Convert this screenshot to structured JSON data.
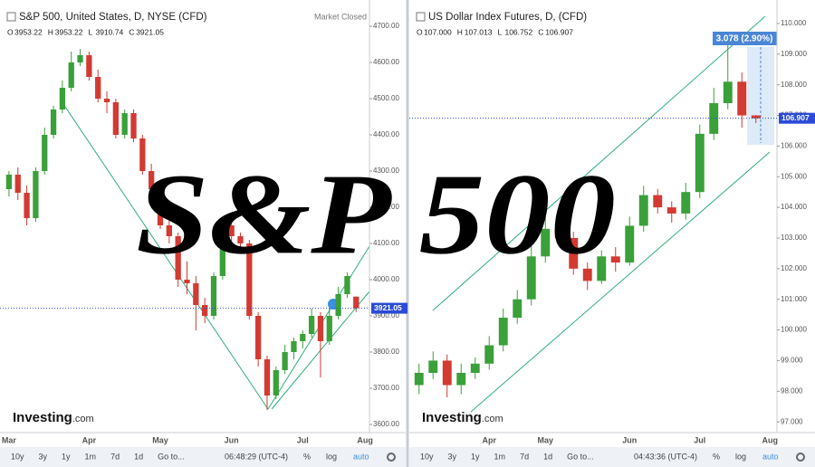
{
  "ui": {
    "overlay_title": "S&P 500"
  },
  "chart_data": [
    {
      "type": "candlestick",
      "title": "S&P 500, United States, D, NYSE (CFD)",
      "status": "Market Closed",
      "ohlc_header": [
        [
          "O",
          "3953.22"
        ],
        [
          "H",
          "3953.22"
        ],
        [
          "L",
          "3910.74"
        ],
        [
          "C",
          "3921.05"
        ]
      ],
      "categories": [
        "Mar",
        null,
        null,
        null,
        null,
        null,
        null,
        null,
        null,
        "Apr",
        null,
        null,
        null,
        null,
        null,
        null,
        null,
        "May",
        null,
        null,
        null,
        null,
        null,
        null,
        null,
        "Jun",
        null,
        null,
        null,
        null,
        null,
        null,
        null,
        "Jul",
        null,
        null,
        null,
        null,
        null,
        null,
        "Aug"
      ],
      "open": [
        4250,
        4290,
        4240,
        4170,
        4300,
        4400,
        4470,
        4530,
        4600,
        4620,
        4560,
        4500,
        4490,
        4400,
        4460,
        4390,
        4300,
        4250,
        4150,
        4120,
        4000,
        3990,
        3930,
        3900,
        4010,
        4150,
        4120,
        4100,
        3900,
        3780,
        3680,
        3750,
        3800,
        3830,
        3850,
        3900,
        3830,
        3900,
        3960,
        3953.22,
        null
      ],
      "high": [
        4300,
        4310,
        4260,
        4310,
        4420,
        4480,
        4550,
        4630,
        4637,
        4630,
        4580,
        4520,
        4500,
        4470,
        4470,
        4400,
        4320,
        4260,
        4170,
        4130,
        4050,
        4010,
        3950,
        4020,
        4170,
        4170,
        4130,
        4110,
        3910,
        3790,
        3760,
        3820,
        3840,
        3860,
        3920,
        3910,
        3920,
        3980,
        4020,
        3953.22,
        null
      ],
      "low": [
        4230,
        4220,
        4150,
        4160,
        4290,
        4390,
        4460,
        4520,
        4590,
        4550,
        4490,
        4460,
        4390,
        4390,
        4380,
        4290,
        4230,
        4140,
        4100,
        3980,
        3960,
        3860,
        3880,
        3890,
        4000,
        4100,
        4080,
        3890,
        3760,
        3640,
        3670,
        3740,
        3780,
        3810,
        3840,
        3730,
        3820,
        3890,
        3950,
        3910.74,
        null
      ],
      "close": [
        4290,
        4240,
        4170,
        4300,
        4400,
        4470,
        4530,
        4600,
        4620,
        4560,
        4500,
        4490,
        4400,
        4460,
        4390,
        4300,
        4250,
        4150,
        4120,
        4000,
        3990,
        3930,
        3900,
        4010,
        4150,
        4120,
        4100,
        3900,
        3780,
        3680,
        3750,
        3800,
        3830,
        3850,
        3900,
        3830,
        3900,
        3960,
        4010,
        3921.05,
        null
      ],
      "up_color": "#3aa03a",
      "down_color": "#d23a32",
      "ylim": [
        3577.5,
        4752.5
      ],
      "yticks": [
        {
          "value": 3600,
          "label": "3600.00"
        },
        {
          "value": 3700,
          "label": "3700.00"
        },
        {
          "value": 3800,
          "label": "3800.00"
        },
        {
          "value": 3900,
          "label": "3900.00"
        },
        {
          "value": 4000,
          "label": "4000.00"
        },
        {
          "value": 4100,
          "label": "4100.00"
        },
        {
          "value": 4200,
          "label": "4200.00"
        },
        {
          "value": 4300,
          "label": "4300.00"
        },
        {
          "value": 4400,
          "label": "4400.00"
        },
        {
          "value": 4500,
          "label": "4500.00"
        },
        {
          "value": 4600,
          "label": "4600.00"
        },
        {
          "value": 4700,
          "label": "4700.00"
        }
      ],
      "price_label": "3921.05",
      "watermark": [
        "Investing",
        ".com"
      ],
      "toolbar": {
        "buttons": [
          "10y",
          "3y",
          "1y",
          "1m",
          "7d",
          "1d",
          "Go to..."
        ],
        "time": "06:48:29 (UTC-4)",
        "options": [
          "%",
          "log",
          "auto"
        ]
      }
    },
    {
      "type": "candlestick",
      "title": "US Dollar Index Futures, D, (CFD)",
      "ohlc_header": [
        [
          "O",
          "107.000"
        ],
        [
          "H",
          "107.013"
        ],
        [
          "L",
          "106.752"
        ],
        [
          "C",
          "106.907"
        ]
      ],
      "categories": [
        null,
        null,
        null,
        null,
        null,
        "Apr",
        null,
        null,
        null,
        "May",
        null,
        null,
        null,
        null,
        null,
        "Jun",
        null,
        null,
        null,
        null,
        "Jul",
        null,
        null,
        null,
        null,
        "Aug"
      ],
      "open": [
        98.2,
        98.6,
        99.0,
        98.2,
        98.6,
        98.9,
        99.5,
        100.4,
        101.0,
        102.4,
        103.3,
        103.0,
        102.0,
        101.6,
        102.4,
        102.2,
        103.4,
        104.4,
        104.0,
        103.8,
        104.5,
        106.4,
        107.4,
        108.1,
        107.0,
        null
      ],
      "high": [
        98.9,
        99.3,
        99.2,
        98.9,
        99.1,
        99.8,
        100.7,
        101.3,
        102.8,
        103.7,
        103.6,
        103.2,
        102.2,
        102.6,
        102.7,
        103.7,
        104.7,
        104.6,
        104.2,
        104.8,
        106.7,
        107.9,
        109.3,
        108.4,
        107.013,
        null
      ],
      "low": [
        97.9,
        98.4,
        97.8,
        97.9,
        98.4,
        98.7,
        99.3,
        100.2,
        100.8,
        102.2,
        102.8,
        101.8,
        101.3,
        101.5,
        101.9,
        102.1,
        103.2,
        103.8,
        103.5,
        103.6,
        104.3,
        106.2,
        107.2,
        106.6,
        106.752,
        null
      ],
      "close": [
        98.6,
        99.0,
        98.2,
        98.6,
        98.9,
        99.5,
        100.4,
        101.0,
        102.4,
        103.3,
        103.0,
        102.0,
        101.6,
        102.4,
        102.2,
        103.4,
        104.4,
        104.0,
        103.8,
        104.5,
        106.4,
        107.4,
        108.1,
        107.0,
        106.907,
        null
      ],
      "up_color": "#3aa03a",
      "down_color": "#d23a32",
      "ylim": [
        96.65,
        110.53
      ],
      "yticks": [
        {
          "value": 97,
          "label": "97.000"
        },
        {
          "value": 98,
          "label": "98.000"
        },
        {
          "value": 99,
          "label": "99.000"
        },
        {
          "value": 100,
          "label": "100.000"
        },
        {
          "value": 101,
          "label": "101.000"
        },
        {
          "value": 102,
          "label": "102.000"
        },
        {
          "value": 103,
          "label": "103.000"
        },
        {
          "value": 104,
          "label": "104.000"
        },
        {
          "value": 105,
          "label": "105.000"
        },
        {
          "value": 106,
          "label": "106.000"
        },
        {
          "value": 107,
          "label": "107.000"
        },
        {
          "value": 108,
          "label": "108.000"
        },
        {
          "value": 109,
          "label": "109.000"
        },
        {
          "value": 110,
          "label": "110.000"
        }
      ],
      "price_label": "106.907",
      "measure": "3.078 (2.90%)",
      "watermark": [
        "Investing",
        ".com"
      ],
      "toolbar": {
        "buttons": [
          "10y",
          "3y",
          "1y",
          "1m",
          "7d",
          "1d",
          "Go to..."
        ],
        "time": "04:43:36 (UTC-4)",
        "options": [
          "%",
          "log",
          "auto"
        ]
      }
    }
  ]
}
